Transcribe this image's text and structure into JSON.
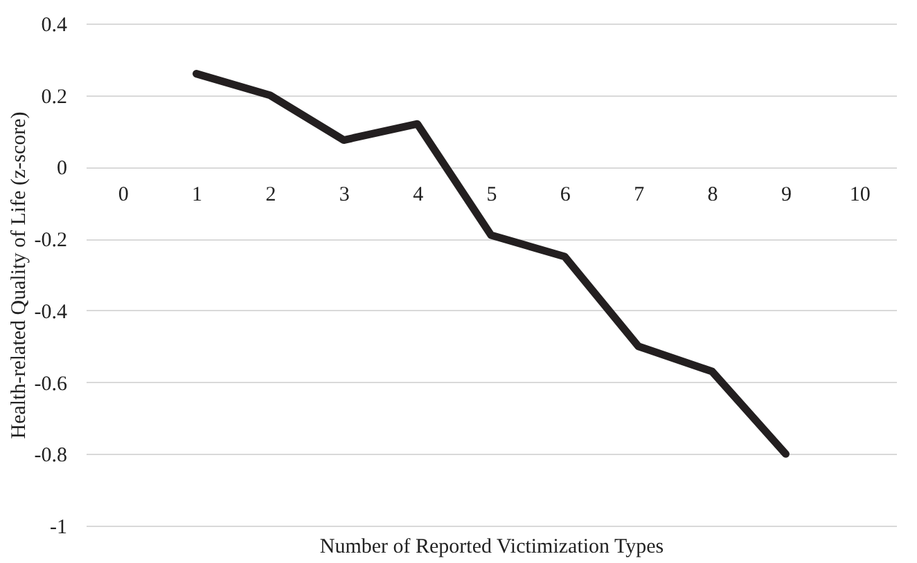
{
  "chart_data": {
    "type": "line",
    "xlabel": "Number of Reported Victimization Types",
    "ylabel": "Health-related Quality of Life (z-score)",
    "categories": [
      "0",
      "1",
      "2",
      "3",
      "4",
      "5",
      "6",
      "7",
      "8",
      "9",
      "10"
    ],
    "series": [
      {
        "color": "#231f20",
        "values": [
          null,
          0.26,
          0.2,
          0.075,
          0.12,
          -0.19,
          -0.25,
          -0.5,
          -0.57,
          -0.8,
          null
        ]
      }
    ],
    "ylim": [
      -1,
      0.4
    ],
    "yticks": [
      0.4,
      0.2,
      0,
      -0.2,
      -0.4,
      -0.6,
      -0.8,
      -1
    ],
    "grid": "y",
    "legend": false,
    "marker": "none",
    "line_style": "solid"
  }
}
